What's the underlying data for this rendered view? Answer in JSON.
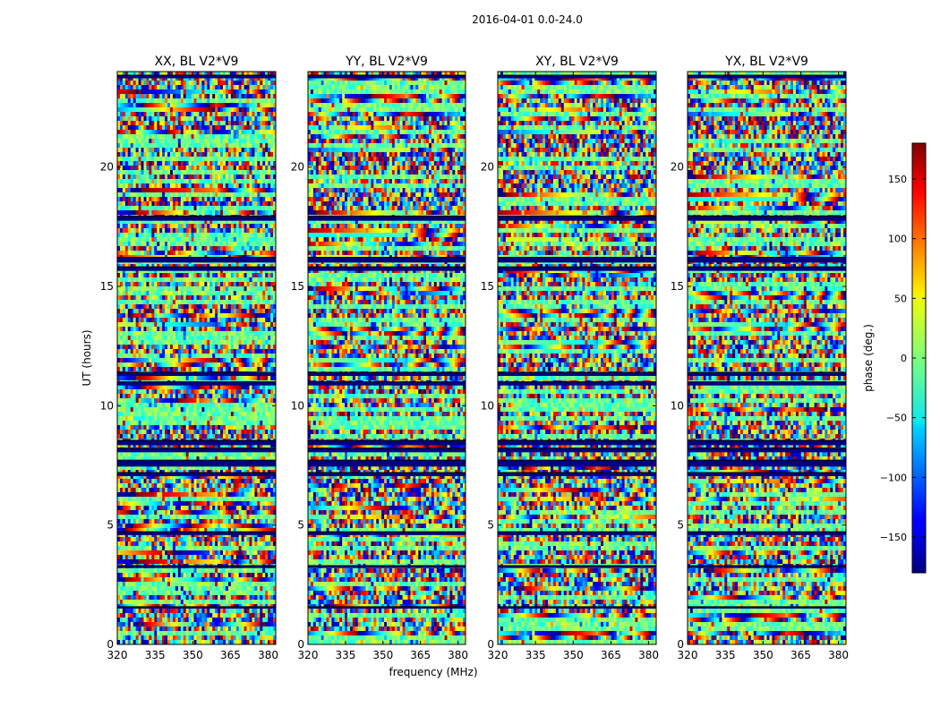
{
  "figure": {
    "suptitle": "2016-04-01 0.0-24.0",
    "xlabel": "frequency (MHz)",
    "ylabel": "UT (hours)"
  },
  "chart_data": {
    "type": "heatmap",
    "title": "2016-04-01 0.0-24.0",
    "xlabel": "frequency (MHz)",
    "ylabel": "UT (hours)",
    "xlim": [
      320,
      383
    ],
    "ylim": [
      0,
      24
    ],
    "xticks": [
      320,
      335,
      350,
      365,
      380
    ],
    "yticks": [
      0,
      5,
      10,
      15,
      20
    ],
    "panels": [
      {
        "title": "XX, BL V2*V9",
        "polarization": "XX",
        "baseline": "V2*V9"
      },
      {
        "title": "YY, BL V2*V9",
        "polarization": "YY",
        "baseline": "V2*V9"
      },
      {
        "title": "XY, BL V2*V9",
        "polarization": "XY",
        "baseline": "V2*V9"
      },
      {
        "title": "YX, BL V2*V9",
        "polarization": "YX",
        "baseline": "V2*V9"
      }
    ],
    "colorbar": {
      "label": "phase (deg.)",
      "colormap": "jet",
      "range": [
        -180,
        180
      ],
      "ticks": [
        150,
        100,
        50,
        0,
        -50,
        -100,
        -150
      ],
      "tick_labels": [
        "150",
        "100",
        "50",
        "0",
        "−50",
        "−100",
        "−150"
      ]
    },
    "flagged_bands_hours": [
      [
        4.58,
        4.72
      ],
      [
        7.05,
        7.2
      ],
      [
        7.45,
        7.72
      ],
      [
        8.05,
        8.22
      ],
      [
        8.35,
        8.55
      ],
      [
        15.65,
        15.82
      ],
      [
        16.0,
        16.22
      ],
      [
        17.75,
        17.95
      ],
      [
        10.85,
        11.0
      ],
      [
        11.25,
        11.4
      ],
      [
        23.72,
        23.85
      ],
      [
        1.5,
        1.58
      ],
      [
        3.2,
        3.3
      ]
    ]
  }
}
